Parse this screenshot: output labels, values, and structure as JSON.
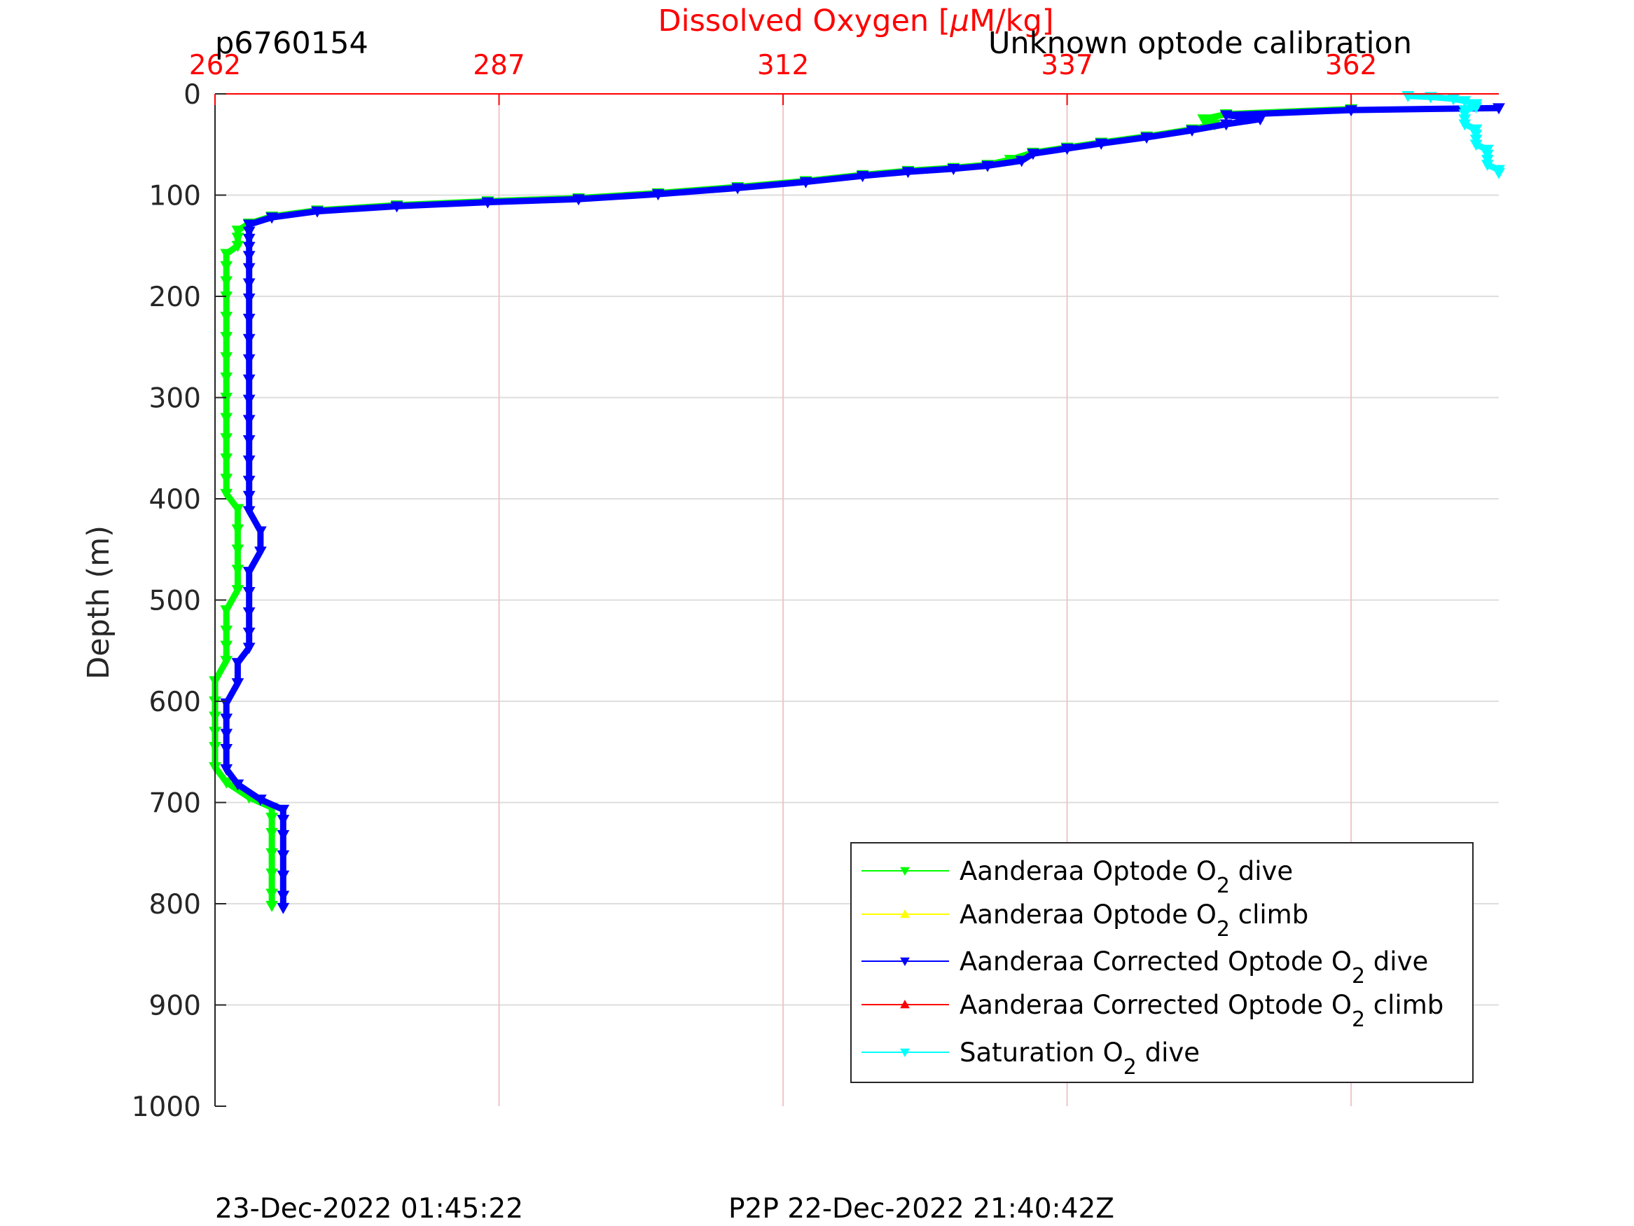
{
  "header": {
    "left_label": "p6760154",
    "right_label": "Unknown optode calibration"
  },
  "footer": {
    "left_timestamp": "23-Dec-2022 01:45:22",
    "right_timestamp": "P2P 22-Dec-2022 21:40:42Z"
  },
  "chart_data": {
    "type": "line",
    "x_axis": {
      "label_prefix": "Dissolved Oxygen [",
      "label_mu": "μ",
      "label_suffix": "M/kg]",
      "position": "top",
      "color": "#ff0000",
      "range": [
        262,
        375
      ],
      "ticks": [
        262,
        287,
        312,
        337,
        362
      ]
    },
    "y_axis": {
      "label": "Depth (m)",
      "range": [
        0,
        1000
      ],
      "reversed": true,
      "ticks": [
        0,
        100,
        200,
        300,
        400,
        500,
        600,
        700,
        800,
        900,
        1000
      ]
    },
    "grid": true,
    "legend": {
      "placement": "bottom-right"
    },
    "series": [
      {
        "name_main": "Aanderaa Optode O",
        "name_sub": "2",
        "name_tail": " dive",
        "color": "#00ff00",
        "marker": "triangle-down",
        "points": [
          [
            362,
            15
          ],
          [
            351,
            20
          ],
          [
            349,
            25
          ],
          [
            350,
            30
          ],
          [
            348,
            35
          ],
          [
            344,
            42
          ],
          [
            340,
            48
          ],
          [
            337,
            53
          ],
          [
            334,
            58
          ],
          [
            332,
            65
          ],
          [
            330,
            70
          ],
          [
            327,
            73
          ],
          [
            323,
            76
          ],
          [
            319,
            80
          ],
          [
            314,
            86
          ],
          [
            308,
            92
          ],
          [
            301,
            98
          ],
          [
            294,
            103
          ],
          [
            286,
            106
          ],
          [
            278,
            110
          ],
          [
            271,
            115
          ],
          [
            267,
            121
          ],
          [
            265,
            128
          ],
          [
            264,
            135
          ],
          [
            264,
            142
          ],
          [
            264,
            150
          ],
          [
            263,
            158
          ],
          [
            263,
            170
          ],
          [
            263,
            185
          ],
          [
            263,
            200
          ],
          [
            263,
            220
          ],
          [
            263,
            240
          ],
          [
            263,
            260
          ],
          [
            263,
            280
          ],
          [
            263,
            300
          ],
          [
            263,
            320
          ],
          [
            263,
            340
          ],
          [
            263,
            360
          ],
          [
            263,
            380
          ],
          [
            263,
            395
          ],
          [
            264,
            410
          ],
          [
            264,
            430
          ],
          [
            264,
            450
          ],
          [
            264,
            470
          ],
          [
            264,
            490
          ],
          [
            263,
            510
          ],
          [
            263,
            530
          ],
          [
            263,
            545
          ],
          [
            263,
            560
          ],
          [
            262,
            580
          ],
          [
            262,
            600
          ],
          [
            262,
            615
          ],
          [
            262,
            630
          ],
          [
            262,
            645
          ],
          [
            262,
            665
          ],
          [
            263,
            680
          ],
          [
            265,
            695
          ],
          [
            267,
            705
          ],
          [
            267,
            715
          ],
          [
            267,
            730
          ],
          [
            267,
            750
          ],
          [
            267,
            770
          ],
          [
            267,
            790
          ],
          [
            267,
            802
          ]
        ]
      },
      {
        "name_main": "Aanderaa Optode O",
        "name_sub": "2",
        "name_tail": " climb",
        "color": "#ffff00",
        "marker": "triangle-up",
        "points": []
      },
      {
        "name_main": "Aanderaa Corrected Optode O",
        "name_sub": "2",
        "name_tail": " dive",
        "color": "#0000ff",
        "marker": "triangle-down",
        "points": [
          [
            375,
            14
          ],
          [
            362,
            16
          ],
          [
            351,
            21
          ],
          [
            354,
            25
          ],
          [
            351,
            30
          ],
          [
            348,
            36
          ],
          [
            344,
            43
          ],
          [
            340,
            49
          ],
          [
            337,
            54
          ],
          [
            334,
            59
          ],
          [
            333,
            66
          ],
          [
            330,
            71
          ],
          [
            327,
            74
          ],
          [
            323,
            77
          ],
          [
            319,
            81
          ],
          [
            314,
            87
          ],
          [
            308,
            93
          ],
          [
            301,
            99
          ],
          [
            294,
            104
          ],
          [
            286,
            107
          ],
          [
            278,
            111
          ],
          [
            271,
            116
          ],
          [
            267,
            122
          ],
          [
            265,
            129
          ],
          [
            265,
            136
          ],
          [
            265,
            143
          ],
          [
            265,
            151
          ],
          [
            265,
            160
          ],
          [
            265,
            172
          ],
          [
            265,
            187
          ],
          [
            265,
            202
          ],
          [
            265,
            222
          ],
          [
            265,
            242
          ],
          [
            265,
            262
          ],
          [
            265,
            282
          ],
          [
            265,
            302
          ],
          [
            265,
            322
          ],
          [
            265,
            342
          ],
          [
            265,
            362
          ],
          [
            265,
            382
          ],
          [
            265,
            397
          ],
          [
            265,
            412
          ],
          [
            266,
            432
          ],
          [
            266,
            452
          ],
          [
            265,
            472
          ],
          [
            265,
            492
          ],
          [
            265,
            512
          ],
          [
            265,
            532
          ],
          [
            265,
            547
          ],
          [
            264,
            562
          ],
          [
            264,
            582
          ],
          [
            263,
            602
          ],
          [
            263,
            617
          ],
          [
            263,
            632
          ],
          [
            263,
            647
          ],
          [
            263,
            667
          ],
          [
            264,
            682
          ],
          [
            266,
            697
          ],
          [
            268,
            707
          ],
          [
            268,
            717
          ],
          [
            268,
            732
          ],
          [
            268,
            752
          ],
          [
            268,
            772
          ],
          [
            268,
            792
          ],
          [
            268,
            804
          ]
        ]
      },
      {
        "name_main": "Aanderaa Corrected Optode O",
        "name_sub": "2",
        "name_tail": " climb",
        "color": "#ff0000",
        "marker": "triangle-up",
        "points": []
      },
      {
        "name_main": "Saturation O",
        "name_sub": "2",
        "name_tail": " dive",
        "color": "#00ffff",
        "marker": "triangle-down",
        "points": [
          [
            367,
            2
          ],
          [
            369,
            3
          ],
          [
            371,
            5
          ],
          [
            372,
            7
          ],
          [
            373,
            10
          ],
          [
            373,
            13
          ],
          [
            372,
            16
          ],
          [
            372,
            20
          ],
          [
            372,
            25
          ],
          [
            372,
            30
          ],
          [
            373,
            35
          ],
          [
            373,
            40
          ],
          [
            373,
            45
          ],
          [
            373,
            50
          ],
          [
            374,
            55
          ],
          [
            374,
            60
          ],
          [
            374,
            65
          ],
          [
            374,
            70
          ],
          [
            375,
            75
          ],
          [
            375,
            78
          ]
        ]
      }
    ]
  }
}
